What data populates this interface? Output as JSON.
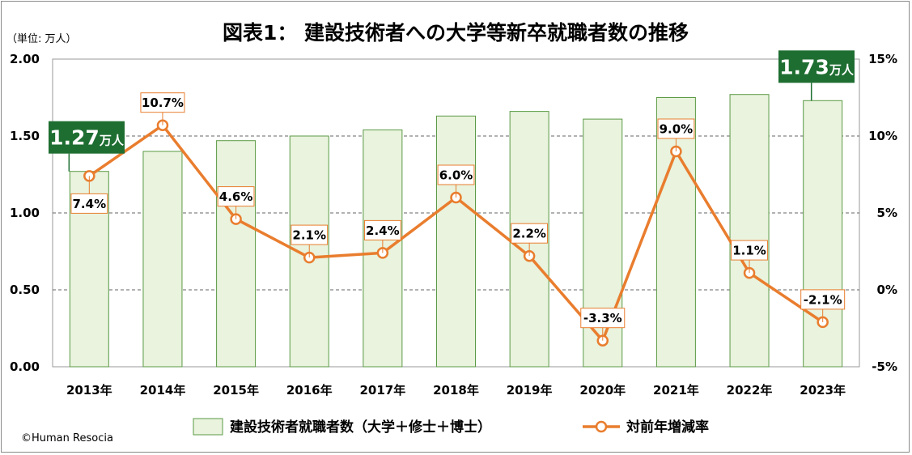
{
  "chart_data": {
    "type": "bar+line",
    "title": "図表1： 建設技術者への大学等新卒就職者数の推移",
    "unit_label": "（単位: 万人）",
    "categories": [
      "2013年",
      "2014年",
      "2015年",
      "2016年",
      "2017年",
      "2018年",
      "2019年",
      "2020年",
      "2021年",
      "2022年",
      "2023年"
    ],
    "bar_series": {
      "name": "建設技術者就職者数（大学＋修士＋博士）",
      "values": [
        1.27,
        1.4,
        1.47,
        1.5,
        1.54,
        1.63,
        1.66,
        1.61,
        1.75,
        1.77,
        1.73
      ],
      "axis": "left",
      "color": "#e9f3dd",
      "edge_color": "#5b9a45"
    },
    "line_series": {
      "name": "対前年増減率",
      "values": [
        7.4,
        10.7,
        4.6,
        2.1,
        2.4,
        6.0,
        2.2,
        -3.3,
        9.0,
        1.1,
        -2.1
      ],
      "labels": [
        "7.4%",
        "10.7%",
        "4.6%",
        "2.1%",
        "2.4%",
        "6.0%",
        "2.2%",
        "-3.3%",
        "9.0%",
        "1.1%",
        "-2.1%"
      ],
      "axis": "right",
      "color": "#e97d2e"
    },
    "left_axis": {
      "min": 0,
      "max": 2.0,
      "ticks": [
        "0.00",
        "0.50",
        "1.00",
        "1.50",
        "2.00"
      ],
      "tick_values": [
        0,
        0.5,
        1.0,
        1.5,
        2.0
      ]
    },
    "right_axis": {
      "min": -5,
      "max": 15,
      "ticks": [
        "-5%",
        "0%",
        "5%",
        "10%",
        "15%"
      ],
      "tick_values": [
        -5,
        0,
        5,
        10,
        15
      ]
    },
    "callouts": [
      {
        "category_index": 0,
        "value": "1.27",
        "unit": "万人"
      },
      {
        "category_index": 10,
        "value": "1.73",
        "unit": "万人"
      }
    ],
    "callout_color": "#1e6e31",
    "legend_position": "bottom",
    "grid": "dashed-horizontal"
  },
  "footer": {
    "copyright": "©Human Resocia"
  }
}
